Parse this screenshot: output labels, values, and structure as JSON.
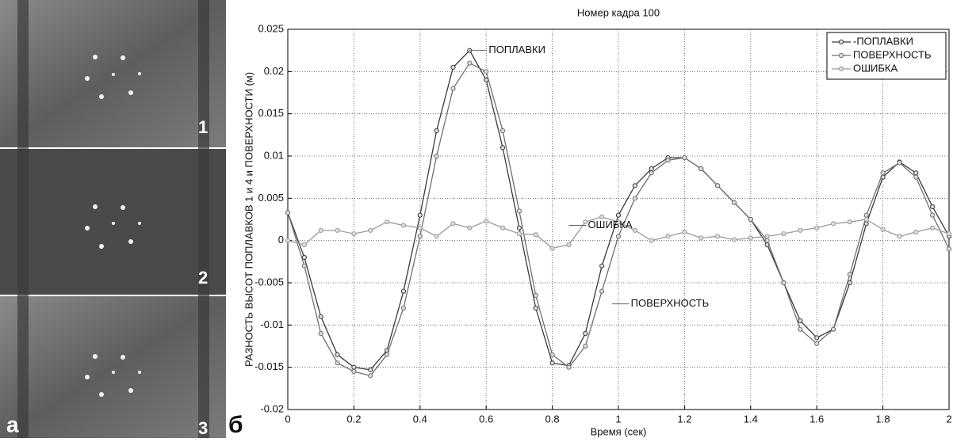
{
  "panel_labels": {
    "photo_1": "1",
    "photo_2": "2",
    "photo_3": "3",
    "left": "а",
    "right": "б"
  },
  "chart_data": {
    "type": "line",
    "title": "Номер кадра  100",
    "x_label": "Время (сек)",
    "y_label": "РАЗНОСТЬ ВЫСОТ ПОПЛАВКОВ 1 и 4  и  ПОВЕРХНОСТИ (м)",
    "x": [
      0,
      0.05,
      0.1,
      0.15,
      0.2,
      0.25,
      0.3,
      0.35,
      0.4,
      0.45,
      0.5,
      0.55,
      0.6,
      0.65,
      0.7,
      0.75,
      0.8,
      0.85,
      0.9,
      0.95,
      1,
      1.05,
      1.1,
      1.15,
      1.2,
      1.25,
      1.3,
      1.35,
      1.4,
      1.45,
      1.5,
      1.55,
      1.6,
      1.65,
      1.7,
      1.75,
      1.8,
      1.85,
      1.9,
      1.95,
      2
    ],
    "series": [
      {
        "name": "-ПОПЛАВКИ",
        "color": "#3a3a3a",
        "values": [
          0.0033,
          -0.002,
          -0.009,
          -0.0135,
          -0.015,
          -0.0153,
          -0.013,
          -0.006,
          0.003,
          0.013,
          0.0205,
          0.0225,
          0.019,
          0.011,
          0.0015,
          -0.008,
          -0.0145,
          -0.0148,
          -0.011,
          -0.003,
          0.003,
          0.0065,
          0.0085,
          0.0098,
          0.0098,
          0.0085,
          0.0065,
          0.0045,
          0.0025,
          -0.0005,
          -0.005,
          -0.0095,
          -0.0115,
          -0.0105,
          -0.005,
          0.002,
          0.0075,
          0.0093,
          0.008,
          0.004,
          0.0005
        ]
      },
      {
        "name": "ПОВЕРХНОСТЬ",
        "color": "#707070",
        "values": [
          0.0033,
          -0.003,
          -0.011,
          -0.0145,
          -0.0155,
          -0.016,
          -0.0135,
          -0.008,
          0.0005,
          0.01,
          0.018,
          0.021,
          0.02,
          0.013,
          0.0035,
          -0.0065,
          -0.0135,
          -0.015,
          -0.0125,
          -0.006,
          0.0005,
          0.005,
          0.008,
          0.0095,
          0.0098,
          0.0085,
          0.0065,
          0.0045,
          0.0025,
          0,
          -0.005,
          -0.0105,
          -0.0122,
          -0.0105,
          -0.004,
          0.003,
          0.008,
          0.0092,
          0.0075,
          0.003,
          -0.001
        ]
      },
      {
        "name": "ОШИБКА",
        "color": "#9a9a9a",
        "values": [
          0,
          -0.0005,
          0.0012,
          0.0012,
          0.0008,
          0.0012,
          0.0022,
          0.0018,
          0.0015,
          0.0005,
          0.002,
          0.0015,
          0.0023,
          0.0015,
          0.0008,
          0.0007,
          -0.0009,
          -0.0005,
          0.0022,
          0.0028,
          0.0022,
          0.0012,
          0,
          0.0005,
          0.001,
          0.0003,
          0.0005,
          0.0001,
          0.0003,
          0.0005,
          0.0008,
          0.0012,
          0.0015,
          0.002,
          0.0022,
          0.0025,
          0.0013,
          0.0005,
          0.001,
          0.0015,
          0.0008
        ]
      }
    ],
    "annotations": [
      {
        "text": "ПОПЛАВКИ",
        "x": 0.55,
        "y": 0.0225
      },
      {
        "text": "ОШИБКА",
        "x": 0.85,
        "y": 0.0018
      },
      {
        "text": "ПОВЕРХНОСТЬ",
        "x": 0.98,
        "y": -0.0075
      }
    ],
    "xlim": [
      0,
      2
    ],
    "ylim": [
      -0.02,
      0.025
    ],
    "xticks": [
      0,
      0.2,
      0.4,
      0.6,
      0.8,
      1,
      1.2,
      1.4,
      1.6,
      1.8,
      2
    ],
    "yticks": [
      -0.02,
      -0.015,
      -0.01,
      -0.005,
      0,
      0.005,
      0.01,
      0.015,
      0.02,
      0.025
    ],
    "grid": true,
    "legend": "top-right"
  }
}
